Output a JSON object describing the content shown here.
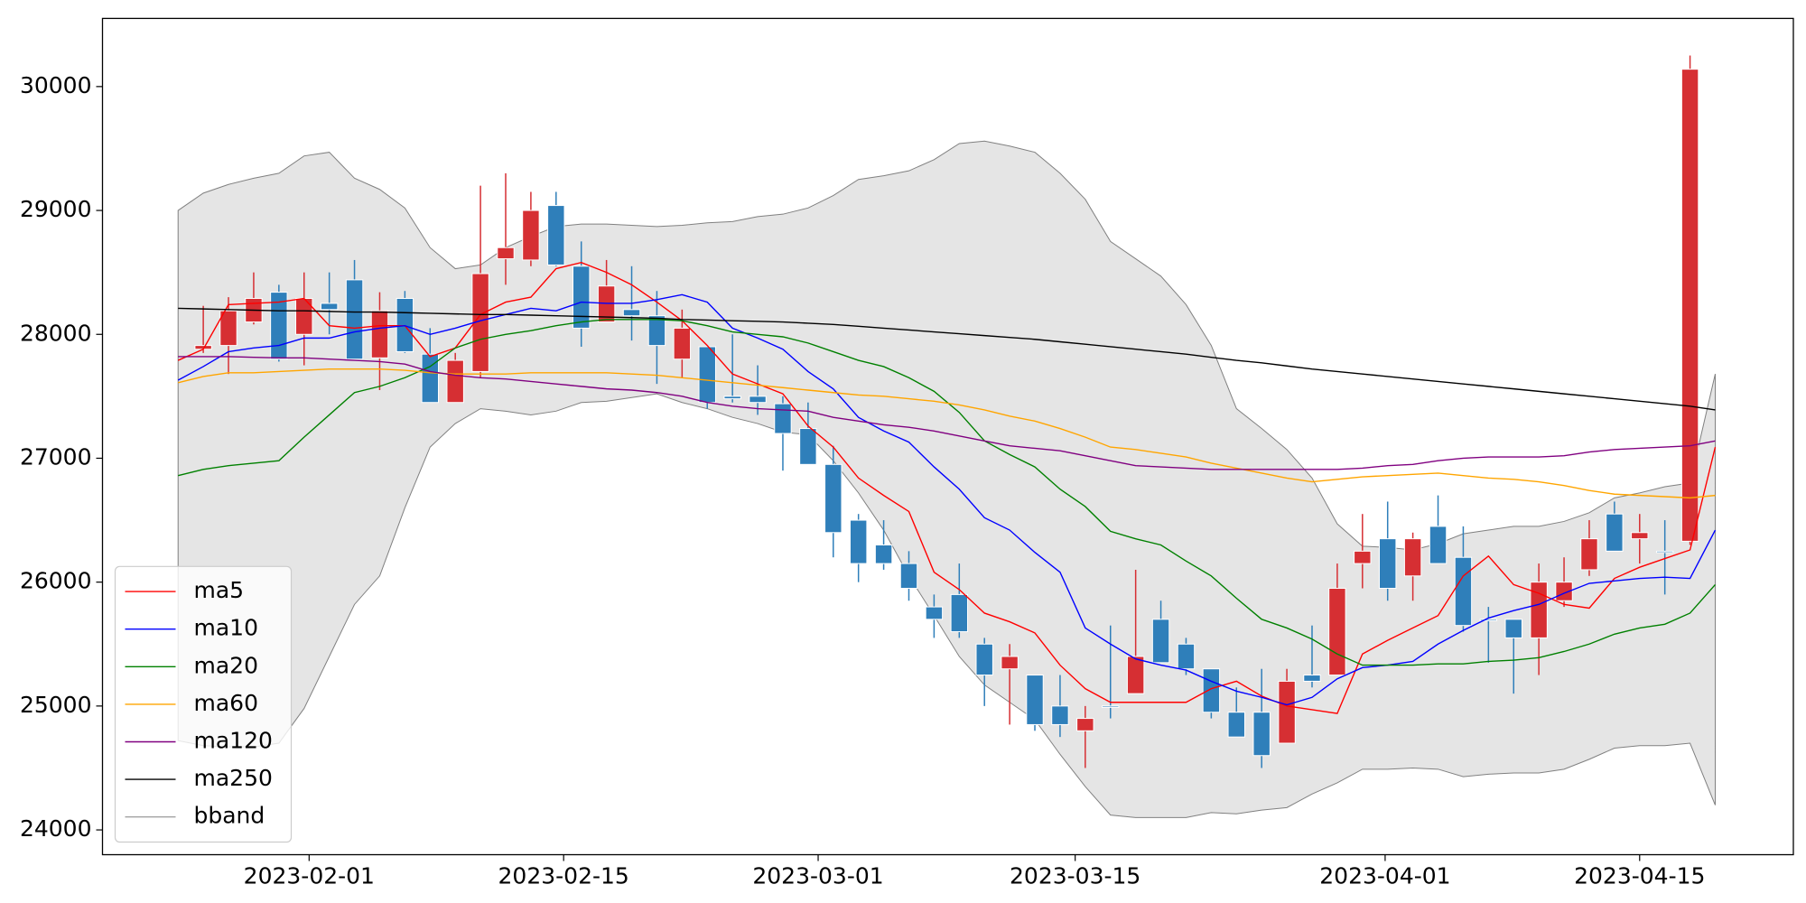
{
  "chart_data": {
    "type": "candlestick",
    "x": [
      0,
      1,
      2,
      3,
      4,
      5,
      6,
      7,
      8,
      9,
      10,
      11,
      12,
      13,
      14,
      15,
      16,
      17,
      18,
      19,
      20,
      21,
      22,
      23,
      24,
      25,
      26,
      27,
      28,
      29,
      30,
      31,
      32,
      33,
      34,
      35,
      36,
      37,
      38,
      39,
      40,
      41,
      42,
      43,
      44,
      45,
      46,
      47,
      48,
      49,
      50,
      51,
      52,
      53,
      54,
      55,
      56,
      57,
      58,
      59,
      60,
      61
    ],
    "open": [
      null,
      27880,
      27910,
      28100,
      28340,
      28000,
      28250,
      28440,
      27810,
      28290,
      27840,
      27450,
      27700,
      28610,
      28600,
      29040,
      28550,
      28100,
      28200,
      28150,
      27800,
      27900,
      27500,
      27500,
      27440,
      27240,
      26950,
      26500,
      26300,
      26150,
      25800,
      25900,
      25500,
      25300,
      25250,
      25000,
      24800,
      25000,
      25100,
      25700,
      25500,
      25300,
      24950,
      24950,
      24700,
      25250,
      25250,
      26150,
      26350,
      26050,
      26450,
      26200,
      25700,
      25700,
      25550,
      25850,
      26100,
      26550,
      26350,
      26250,
      26330,
      null
    ],
    "high": [
      null,
      28230,
      28300,
      28500,
      28400,
      28500,
      28500,
      28600,
      28340,
      28350,
      28050,
      27850,
      29200,
      29300,
      29150,
      29150,
      28750,
      28600,
      28550,
      28350,
      28200,
      27900,
      28000,
      27750,
      27500,
      27450,
      27100,
      26550,
      26500,
      26250,
      25900,
      26150,
      25550,
      25500,
      25250,
      25250,
      25000,
      25650,
      26100,
      25850,
      25550,
      25300,
      25150,
      25300,
      25300,
      25650,
      26150,
      26550,
      26650,
      26400,
      26700,
      26450,
      25800,
      25700,
      26150,
      26200,
      26500,
      26650,
      26550,
      26500,
      30250,
      null
    ],
    "low": [
      null,
      27850,
      27680,
      28080,
      27780,
      27750,
      28000,
      27800,
      27550,
      27850,
      27450,
      27450,
      27650,
      28400,
      28550,
      28550,
      27900,
      28100,
      27950,
      27600,
      27650,
      27400,
      27450,
      27350,
      26900,
      26950,
      26200,
      26000,
      26100,
      25850,
      25550,
      25550,
      25000,
      24850,
      24800,
      24750,
      24500,
      24900,
      25100,
      25350,
      25250,
      24900,
      24750,
      24500,
      24700,
      25150,
      25250,
      25950,
      25850,
      25850,
      26150,
      25600,
      25350,
      25100,
      25250,
      25800,
      26050,
      26250,
      26150,
      25900,
      26300,
      null
    ],
    "close": [
      null,
      27910,
      28190,
      28290,
      27800,
      28290,
      28200,
      27800,
      28190,
      27860,
      27450,
      27790,
      28490,
      28700,
      29000,
      28560,
      28050,
      28390,
      28150,
      27910,
      28050,
      27450,
      27480,
      27450,
      27200,
      26950,
      26400,
      26150,
      26150,
      25950,
      25700,
      25600,
      25250,
      25400,
      24850,
      24850,
      24900,
      24990,
      25400,
      25350,
      25300,
      24950,
      24750,
      24600,
      25200,
      25200,
      25950,
      26250,
      25950,
      26350,
      26150,
      25650,
      25690,
      25550,
      26000,
      26000,
      26350,
      26250,
      26400,
      26240,
      30140,
      null
    ],
    "up_color": "#d62f33",
    "down_color": "#2f7fba",
    "series": [
      {
        "name": "ma5",
        "color": "red",
        "values": [
          27790,
          27880,
          28240,
          28250,
          28260,
          28290,
          28070,
          28050,
          28070,
          28070,
          27820,
          27890,
          28160,
          28260,
          28300,
          28530,
          28580,
          28500,
          28400,
          28260,
          28110,
          27910,
          27680,
          27600,
          27520,
          27260,
          27090,
          26840,
          26700,
          26570,
          26080,
          25940,
          25750,
          25680,
          25590,
          25330,
          25140,
          25030,
          25030,
          25030,
          25030,
          25140,
          25200,
          25080,
          25000,
          24970,
          24940,
          25420,
          25530,
          25630,
          25730,
          26050,
          26210,
          25980,
          25910,
          25820,
          25790,
          26030,
          26120,
          26190,
          26260,
          27090
        ]
      },
      {
        "name": "ma10",
        "color": "blue",
        "values": [
          27630,
          27740,
          27860,
          27890,
          27910,
          27970,
          27970,
          28020,
          28050,
          28070,
          28000,
          28050,
          28110,
          28160,
          28210,
          28190,
          28260,
          28250,
          28250,
          28280,
          28320,
          28260,
          28050,
          27970,
          27880,
          27700,
          27560,
          27330,
          27220,
          27130,
          26930,
          26750,
          26520,
          26420,
          26240,
          26080,
          25630,
          25500,
          25380,
          25330,
          25290,
          25200,
          25120,
          25070,
          25010,
          25070,
          25220,
          25310,
          25330,
          25360,
          25500,
          25610,
          25710,
          25770,
          25820,
          25910,
          25990,
          26010,
          26030,
          26040,
          26030,
          26420
        ]
      },
      {
        "name": "ma20",
        "color": "green",
        "values": [
          26860,
          26910,
          26940,
          26960,
          26980,
          27170,
          27350,
          27530,
          27580,
          27650,
          27740,
          27890,
          27960,
          28000,
          28030,
          28070,
          28100,
          28120,
          28120,
          28120,
          28110,
          28070,
          28020,
          28000,
          27980,
          27930,
          27860,
          27790,
          27740,
          27650,
          27540,
          27370,
          27140,
          27030,
          26930,
          26750,
          26610,
          26410,
          26350,
          26300,
          26170,
          26050,
          25870,
          25700,
          25630,
          25540,
          25420,
          25330,
          25330,
          25330,
          25340,
          25340,
          25360,
          25370,
          25390,
          25440,
          25500,
          25580,
          25630,
          25660,
          25750,
          25980
        ]
      },
      {
        "name": "ma60",
        "color": "orange",
        "values": [
          27610,
          27660,
          27690,
          27690,
          27700,
          27710,
          27720,
          27720,
          27720,
          27710,
          27690,
          27680,
          27680,
          27680,
          27690,
          27690,
          27690,
          27690,
          27680,
          27670,
          27650,
          27630,
          27610,
          27590,
          27570,
          27550,
          27530,
          27510,
          27500,
          27480,
          27460,
          27430,
          27390,
          27340,
          27300,
          27240,
          27170,
          27090,
          27070,
          27040,
          27010,
          26960,
          26920,
          26880,
          26840,
          26810,
          26830,
          26850,
          26860,
          26870,
          26880,
          26860,
          26840,
          26830,
          26810,
          26780,
          26740,
          26710,
          26700,
          26690,
          26680,
          26700
        ]
      },
      {
        "name": "ma120",
        "color": "purple",
        "values": [
          27820,
          27820,
          27820,
          27815,
          27810,
          27810,
          27800,
          27790,
          27780,
          27760,
          27700,
          27670,
          27650,
          27640,
          27620,
          27600,
          27580,
          27560,
          27550,
          27530,
          27500,
          27450,
          27420,
          27400,
          27390,
          27380,
          27330,
          27300,
          27270,
          27250,
          27220,
          27180,
          27140,
          27100,
          27080,
          27060,
          27020,
          26980,
          26940,
          26930,
          26920,
          26910,
          26910,
          26910,
          26910,
          26910,
          26910,
          26920,
          26940,
          26950,
          26980,
          27000,
          27010,
          27010,
          27010,
          27020,
          27050,
          27070,
          27080,
          27090,
          27100,
          27140
        ]
      },
      {
        "name": "ma250",
        "color": "black",
        "values": [
          28210,
          28205,
          28200,
          28195,
          28190,
          28190,
          28185,
          28180,
          28180,
          28175,
          28170,
          28165,
          28160,
          28160,
          28155,
          28150,
          28145,
          28140,
          28135,
          28130,
          28120,
          28115,
          28110,
          28105,
          28100,
          28090,
          28080,
          28065,
          28050,
          28035,
          28020,
          28005,
          27990,
          27975,
          27960,
          27940,
          27920,
          27900,
          27880,
          27860,
          27840,
          27815,
          27790,
          27770,
          27745,
          27720,
          27700,
          27680,
          27660,
          27640,
          27620,
          27600,
          27580,
          27560,
          27540,
          27520,
          27500,
          27480,
          27460,
          27440,
          27420,
          27390
        ]
      }
    ],
    "band": {
      "name": "bband",
      "color": "#808080",
      "fill": "#e5e5e5",
      "upper": [
        29000,
        29140,
        29210,
        29260,
        29300,
        29440,
        29470,
        29260,
        29170,
        29020,
        28700,
        28530,
        28560,
        28700,
        28790,
        28870,
        28890,
        28890,
        28880,
        28870,
        28880,
        28900,
        28910,
        28950,
        28970,
        29020,
        29120,
        29250,
        29280,
        29320,
        29410,
        29540,
        29560,
        29520,
        29470,
        29300,
        29090,
        28750,
        28610,
        28470,
        28240,
        27910,
        27400,
        27240,
        27070,
        26840,
        26470,
        26290,
        26280,
        26260,
        26310,
        26390,
        26420,
        26450,
        26450,
        26490,
        26560,
        26680,
        26720,
        26770,
        26800,
        27680
      ],
      "lower": [
        24720,
        24680,
        24670,
        24670,
        24700,
        24980,
        25400,
        25820,
        26050,
        26600,
        27090,
        27280,
        27400,
        27380,
        27350,
        27380,
        27450,
        27460,
        27490,
        27520,
        27450,
        27400,
        27330,
        27280,
        27210,
        27190,
        26980,
        26720,
        26420,
        26050,
        25730,
        25400,
        25170,
        25030,
        24890,
        24610,
        24350,
        24120,
        24100,
        24100,
        24100,
        24140,
        24130,
        24160,
        24180,
        24290,
        24380,
        24490,
        24490,
        24500,
        24490,
        24430,
        24450,
        24460,
        24460,
        24490,
        24570,
        24660,
        24680,
        24680,
        24700,
        24200
      ]
    },
    "xlim": [
      -3.0,
      64.1
    ],
    "xticks": [
      {
        "value": 5.2,
        "label": "2023-02-01"
      },
      {
        "value": 15.3,
        "label": "2023-02-15"
      },
      {
        "value": 25.4,
        "label": "2023-03-01"
      },
      {
        "value": 35.6,
        "label": "2023-03-15"
      },
      {
        "value": 47.9,
        "label": "2023-04-01"
      },
      {
        "value": 58.0,
        "label": "2023-04-15"
      }
    ],
    "ylim": [
      23800,
      30550
    ],
    "yticks": [
      24000,
      25000,
      26000,
      27000,
      28000,
      29000,
      30000
    ],
    "grid": false,
    "legend": "lower left"
  }
}
